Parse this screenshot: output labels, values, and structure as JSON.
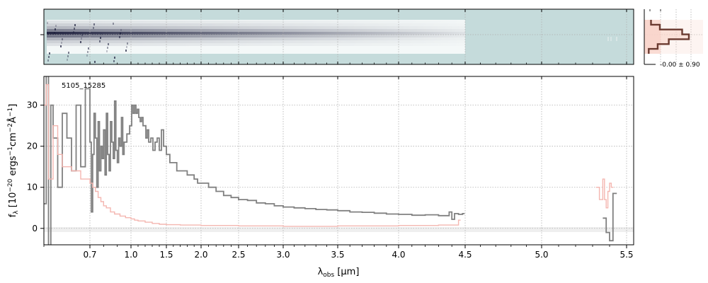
{
  "colors": {
    "spectrum": "#808080",
    "error": "#f4b6b0",
    "grid": "#b0b0b0",
    "panel_bg": "#c5dbdb",
    "trace_dark": "#1a1c3a",
    "profile_line": "#6b3a30",
    "profile_fill": "#f8d2c8",
    "zero_band": "#e8e8e8"
  },
  "chart_data": [
    {
      "type": "heatmap",
      "name": "2d-spectrum",
      "description_label": "",
      "x_range_um": [
        0.6,
        5.55
      ],
      "trace_extent_um": [
        0.6,
        4.5
      ],
      "grid": true
    },
    {
      "type": "area",
      "name": "spatial-profile",
      "annotation": "-0.00 ± 0.90",
      "profile": [
        0.15,
        0.35,
        0.85,
        1.0,
        0.55,
        0.3,
        0.1
      ],
      "grid": true
    },
    {
      "type": "line",
      "name": "1d-spectrum",
      "label": "5105_15285",
      "xlabel": "λobs [μm]",
      "xlabel_main": "λ",
      "xlabel_sub": "obs",
      "xlabel_unit": " [μm]",
      "ylabel": "fλ [10⁻²⁰ ergs⁻¹cm⁻²Å⁻¹]",
      "ylabel_parts": [
        "f",
        "λ",
        " [10",
        "−20",
        " ergs",
        "−1",
        "cm",
        "−2",
        "Å",
        "−1",
        "]"
      ],
      "x_ticks": [
        "0.7",
        "1.0",
        "1.5",
        "2.0",
        "2.5",
        "3.0",
        "3.5",
        "4.0",
        "4.5",
        "5.0",
        "5.5"
      ],
      "y_ticks": [
        "0",
        "10",
        "20",
        "30"
      ],
      "ylim": [
        -4,
        37
      ],
      "xlim": [
        0.6,
        5.55
      ],
      "grid": true,
      "series": [
        {
          "key": "flux",
          "x": [
            0.6,
            0.605,
            0.61,
            0.615,
            0.62,
            0.63,
            0.64,
            0.65,
            0.66,
            0.67,
            0.68,
            0.69,
            0.7,
            0.71,
            0.72,
            0.73,
            0.74,
            0.75,
            0.76,
            0.77,
            0.78,
            0.79,
            0.8,
            0.81,
            0.82,
            0.83,
            0.84,
            0.85,
            0.86,
            0.87,
            0.88,
            0.89,
            0.9,
            0.91,
            0.92,
            0.93,
            0.94,
            0.95,
            0.97,
            0.99,
            1.01,
            1.03,
            1.05,
            1.07,
            1.09,
            1.11,
            1.13,
            1.15,
            1.17,
            1.19,
            1.21,
            1.23,
            1.25,
            1.28,
            1.31,
            1.34,
            1.37,
            1.4,
            1.43,
            1.46,
            1.5,
            1.55,
            1.6,
            1.65,
            1.7,
            1.75,
            1.8,
            1.85,
            1.9,
            1.95,
            2.0,
            2.1,
            2.2,
            2.3,
            2.4,
            2.5,
            2.6,
            2.7,
            2.8,
            2.9,
            3.0,
            3.1,
            3.2,
            3.3,
            3.4,
            3.5,
            3.6,
            3.7,
            3.8,
            3.9,
            4.0,
            4.1,
            4.2,
            4.3,
            4.38,
            4.4,
            4.42,
            4.45,
            4.48
          ],
          "y": [
            6,
            38,
            -6,
            30,
            22,
            10,
            28,
            22,
            14,
            30,
            15,
            34,
            21,
            4,
            18,
            28,
            22,
            10,
            26,
            14,
            20,
            17,
            24,
            13,
            28,
            18,
            14,
            26,
            21,
            17,
            31,
            19,
            16,
            22,
            20,
            27,
            18,
            21,
            23,
            25,
            30,
            28,
            30,
            28,
            29,
            27,
            26,
            27,
            25,
            25,
            22,
            24,
            21,
            22,
            19,
            21,
            22,
            19,
            24,
            20,
            18,
            16,
            16,
            14,
            14,
            14,
            13,
            13,
            12,
            11,
            11,
            10,
            9,
            8,
            7.5,
            7,
            6.8,
            6.2,
            6,
            5.5,
            5.2,
            5,
            4.8,
            4.6,
            4.5,
            4.3,
            4,
            3.9,
            3.7,
            3.5,
            3.4,
            3.2,
            3.3,
            3.1,
            4,
            2.2,
            3.6,
            3.4,
            3.6
          ]
        },
        {
          "key": "flux-red",
          "x": [
            5.36,
            5.37,
            5.38,
            5.39,
            5.4,
            5.41,
            5.42,
            5.43
          ],
          "y": [
            2.5,
            2.5,
            -1,
            -1,
            -3,
            -3,
            8.5,
            8.5
          ]
        },
        {
          "key": "error",
          "x": [
            0.6,
            0.605,
            0.61,
            0.62,
            0.63,
            0.64,
            0.66,
            0.68,
            0.7,
            0.72,
            0.74,
            0.76,
            0.78,
            0.8,
            0.82,
            0.85,
            0.88,
            0.92,
            0.96,
            1.0,
            1.05,
            1.1,
            1.2,
            1.3,
            1.4,
            1.5,
            1.7,
            2.0,
            2.5,
            3.0,
            3.5,
            4.0,
            4.3,
            4.45
          ],
          "y": [
            30,
            35,
            12,
            25,
            18,
            15,
            14,
            12,
            11,
            10,
            9,
            7.5,
            6.5,
            5.5,
            5,
            4,
            3.5,
            3,
            2.6,
            2.3,
            2,
            1.8,
            1.5,
            1.2,
            1.0,
            0.9,
            0.8,
            0.7,
            0.6,
            0.5,
            0.6,
            0.7,
            0.8,
            2
          ]
        },
        {
          "key": "error-red",
          "x": [
            5.32,
            5.34,
            5.36,
            5.37,
            5.38,
            5.39,
            5.4,
            5.41
          ],
          "y": [
            10,
            7,
            12,
            7,
            5,
            9,
            11,
            10
          ]
        }
      ]
    }
  ]
}
